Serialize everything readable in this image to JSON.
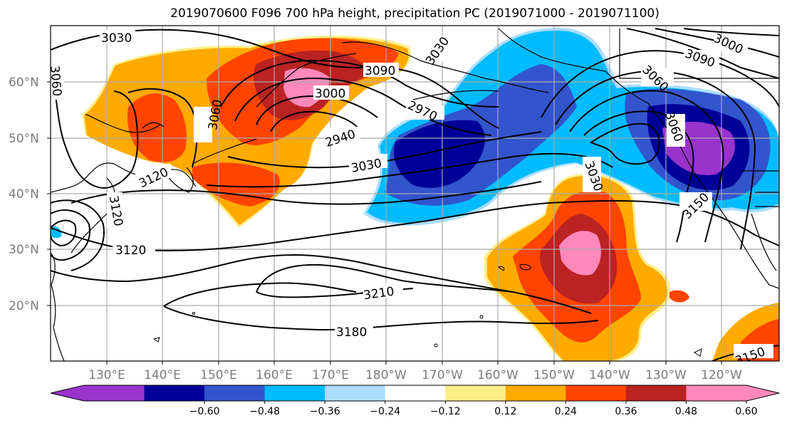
{
  "title": "2019070600 F096 700 hPa height, precipitation PC (2019071000 - 2019071100)",
  "lat_labels": [
    "60°N",
    "50°N",
    "40°N",
    "30°N",
    "20°N"
  ],
  "lon_labels": [
    "130°E",
    "140°E",
    "150°E",
    "160°E",
    "170°E",
    "180°W",
    "170°W",
    "160°W",
    "150°W",
    "140°W",
    "130°W",
    "120°W"
  ],
  "contour_labels": [
    "3030",
    "3090",
    "3000",
    "2970",
    "2940",
    "3060",
    "3120",
    "3030",
    "3120",
    "3210",
    "3180",
    "3150",
    "3030",
    "3060",
    "3090",
    "3060",
    "3150",
    "3000",
    "3030",
    "3060",
    "3120"
  ],
  "colorbar": {
    "colors": [
      "#9933cc",
      "#000099",
      "#3355cc",
      "#00bbff",
      "#aaddff",
      "#ffffff",
      "#ffee88",
      "#ffaa00",
      "#ff4400",
      "#bb2222",
      "#ff88bb"
    ],
    "ticks": [
      "−0.60",
      "−0.48",
      "−0.36",
      "−0.24",
      "−0.12",
      "0.12",
      "0.24",
      "0.36",
      "0.48",
      "0.60"
    ]
  }
}
